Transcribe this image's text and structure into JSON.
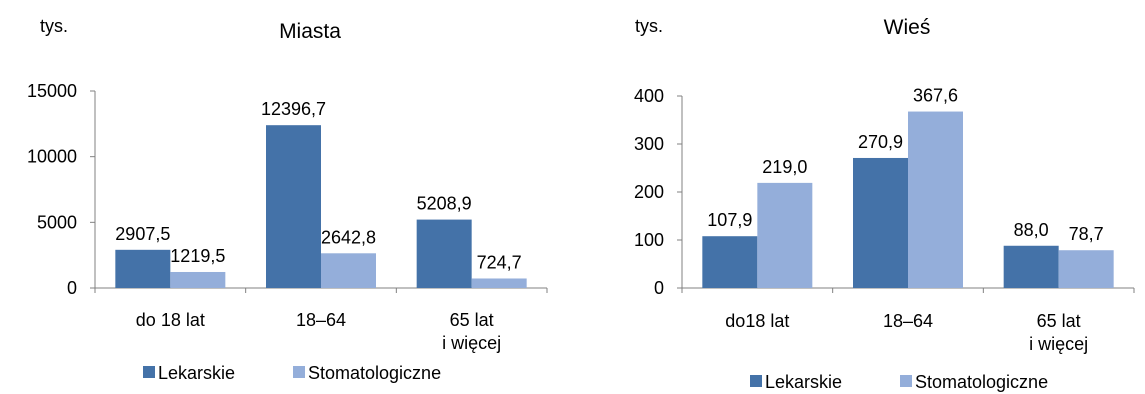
{
  "colors": {
    "series_1": "#4472A8",
    "series_2": "#94AEDA",
    "axis": "#808080"
  },
  "chart_data": [
    {
      "type": "bar",
      "title": "Miasta",
      "ylabel": "tys.",
      "categories": [
        [
          "do 18 lat"
        ],
        [
          "18–64"
        ],
        [
          "65 lat",
          "i więcej"
        ]
      ],
      "series": [
        {
          "name": "Lekarskie",
          "values": [
            2907.5,
            12396.7,
            5208.9
          ],
          "labels": [
            "2907,5",
            "12396,7",
            "5208,9"
          ]
        },
        {
          "name": "Stomatologiczne",
          "values": [
            1219.5,
            2642.8,
            724.7
          ],
          "labels": [
            "1219,5",
            "2642,8",
            "724,7"
          ]
        }
      ],
      "ylim": [
        0,
        15000
      ],
      "yticks": [
        0,
        5000,
        10000,
        15000
      ],
      "ytick_labels": [
        "0",
        "5000",
        "10000",
        "15000"
      ],
      "legend": "bottom",
      "grid": false
    },
    {
      "type": "bar",
      "title": "Wieś",
      "ylabel": "tys.",
      "categories": [
        [
          "do18 lat"
        ],
        [
          "18–64"
        ],
        [
          "65 lat",
          "i więcej"
        ]
      ],
      "series": [
        {
          "name": "Lekarskie",
          "values": [
            107.9,
            270.9,
            88.0
          ],
          "labels": [
            "107,9",
            "270,9",
            "88,0"
          ]
        },
        {
          "name": "Stomatologiczne",
          "values": [
            219.0,
            367.6,
            78.7
          ],
          "labels": [
            "219,0",
            "367,6",
            "78,7"
          ]
        }
      ],
      "ylim": [
        0,
        400
      ],
      "yticks": [
        0,
        100,
        200,
        300,
        400
      ],
      "ytick_labels": [
        "0",
        "100",
        "200",
        "300",
        "400"
      ],
      "legend": "bottom",
      "grid": false
    }
  ]
}
